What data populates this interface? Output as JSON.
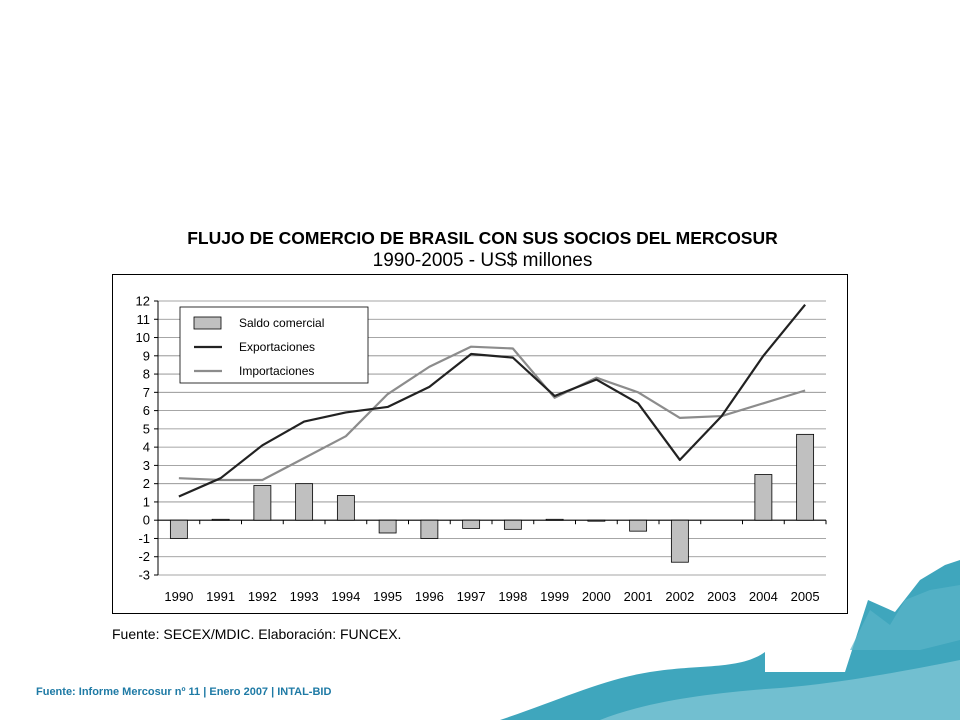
{
  "header": {
    "title": "FLUJO DE COMERCIO DE BRASIL CON SUS SOCIOS DEL MERCOSUR",
    "subtitle": "1990-2005 - US$ millones"
  },
  "source_note": "Fuente: SECEX/MDIC. Elaboración: FUNCEX.",
  "footer": "Fuente: Informe Mercosur nº 11  |  Enero 2007  |  INTAL-BID",
  "colors": {
    "bars": "#c0c0c0",
    "exportaciones": "#222222",
    "importaciones": "#8c8c8c",
    "grid": "#888888",
    "decor": "#2a9cb6"
  },
  "chart_data": {
    "type": "bar+line",
    "title": "FLUJO DE COMERCIO DE BRASIL CON SUS SOCIOS DEL MERCOSUR",
    "subtitle": "1990-2005 - US$ millones",
    "categories": [
      "1990",
      "1991",
      "1992",
      "1993",
      "1994",
      "1995",
      "1996",
      "1997",
      "1998",
      "1999",
      "2000",
      "2001",
      "2002",
      "2003",
      "2004",
      "2005"
    ],
    "ylim": [
      -3,
      12
    ],
    "yticks": [
      12,
      11,
      10,
      9,
      8,
      7,
      6,
      5,
      4,
      3,
      2,
      1,
      0,
      -1,
      -2,
      -3
    ],
    "grid": true,
    "legend_position": "top-left",
    "series": [
      {
        "name": "Saldo comercial",
        "kind": "bar",
        "values": [
          -1.0,
          0.05,
          1.9,
          2.0,
          1.35,
          -0.7,
          -1.0,
          -0.45,
          -0.5,
          0.05,
          -0.05,
          -0.6,
          -2.3,
          0.0,
          2.5,
          4.7
        ]
      },
      {
        "name": "Exportaciones",
        "kind": "line",
        "values": [
          1.3,
          2.3,
          4.1,
          5.4,
          5.9,
          6.2,
          7.3,
          9.1,
          8.9,
          6.8,
          7.7,
          6.4,
          3.3,
          5.7,
          9.0,
          11.8
        ]
      },
      {
        "name": "Importaciones",
        "kind": "line",
        "values": [
          2.3,
          2.2,
          2.2,
          3.4,
          4.6,
          6.9,
          8.4,
          9.5,
          9.4,
          6.7,
          7.8,
          7.0,
          5.6,
          5.7,
          6.4,
          7.1
        ]
      }
    ]
  }
}
